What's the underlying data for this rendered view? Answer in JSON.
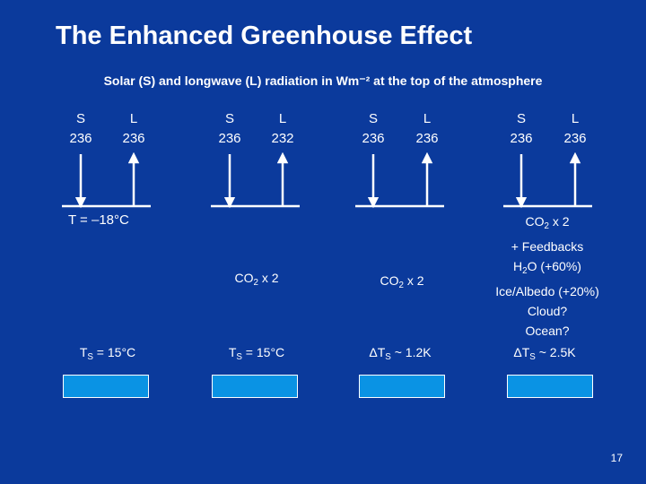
{
  "title": "The Enhanced Greenhouse Effect",
  "subtitle": "Solar (S) and longwave (L) radiation in Wm⁻² at the top of the atmosphere",
  "columns": [
    {
      "s_label": "S",
      "s_value": "236",
      "l_label": "L",
      "l_value": "236"
    },
    {
      "s_label": "S",
      "s_value": "236",
      "l_label": "L",
      "l_value": "232"
    },
    {
      "s_label": "S",
      "s_value": "236",
      "l_label": "L",
      "l_value": "236"
    },
    {
      "s_label": "S",
      "s_value": "236",
      "l_label": "L",
      "l_value": "236"
    }
  ],
  "temperature": "T = –18°C",
  "co2_a": "CO",
  "co2_a_sub": "2",
  "co2_a_rest": " x 2",
  "co2_b": "CO",
  "co2_b_sub": "2",
  "co2_b_rest": " x 2",
  "feedbacks": {
    "line1a": "CO",
    "line1sub": "2",
    "line1b": " x 2",
    "line2": "+ Feedbacks",
    "line3a": "H",
    "line3sub": "2",
    "line3b": "O (+60%)",
    "line4": "Ice/Albedo (+20%)",
    "line5": "Cloud?",
    "line6": "Ocean?"
  },
  "ts": [
    {
      "pre": "T",
      "sub": "S",
      "post": " = 15°C"
    },
    {
      "pre": "T",
      "sub": "S",
      "post": " = 15°C"
    },
    {
      "pre": "ΔT",
      "sub": "S",
      "post": " ~ 1.2K"
    },
    {
      "pre": "ΔT",
      "sub": "S",
      "post": " ~ 2.5K"
    }
  ],
  "page_number": "17"
}
